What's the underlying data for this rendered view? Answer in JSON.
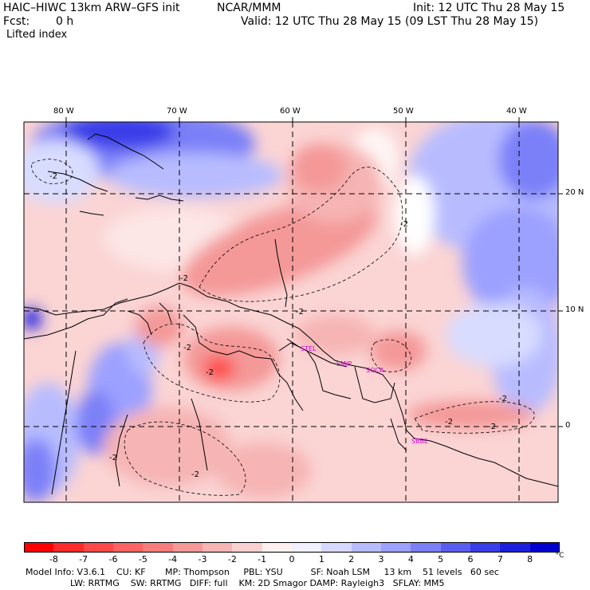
{
  "header": {
    "model": "HAIC–HIWC 13km ARW–GFS init",
    "center": "NCAR/MMM",
    "init": "Init: 12 UTC Thu 28 May 15",
    "fcst_label": "Fcst:",
    "fcst_value": "0 h",
    "valid": "Valid: 12 UTC Thu 28 May 15 (09 LST Thu 28 May 15)",
    "field": "Lifted index"
  },
  "map": {
    "lon_labels": [
      "80 W",
      "70 W",
      "60 W",
      "50 W",
      "40 W"
    ],
    "lat_labels": [
      "20 N",
      "10 N",
      "0"
    ],
    "contour_labels": [
      "-2",
      "-2",
      "-2",
      "-2",
      "-2",
      "-2",
      "-2",
      "-2",
      "-2",
      "-2",
      "-2"
    ],
    "stations": [
      "STEL",
      "SMJP",
      "SOCA",
      "SBBE"
    ],
    "colors": {
      "neg_strong": "#ff2020",
      "neg_mid": "#f28a8a",
      "neg_light": "#fbd4d4",
      "neutral": "#ffffff",
      "pos_light": "#d8dcff",
      "pos_mid": "#8a8ff5",
      "pos_strong": "#2020e0",
      "station": "#d000d0"
    }
  },
  "colorbar": {
    "labels": [
      "-8",
      "-7",
      "-6",
      "-5",
      "-4",
      "-3",
      "-2",
      "-1",
      "0",
      "1",
      "2",
      "3",
      "4",
      "5",
      "6",
      "7",
      "8"
    ],
    "unit": "°C",
    "colors": [
      "#ff0000",
      "#ff2a2a",
      "#ff4848",
      "#ff6363",
      "#f77d7d",
      "#f49898",
      "#f6b4b4",
      "#fbd0d0",
      "#fff0f0",
      "#f0f0ff",
      "#d6d8ff",
      "#b8bcff",
      "#9ca0ff",
      "#7c80f8",
      "#5a5ef0",
      "#3a3ee8",
      "#1c20de",
      "#0000d0"
    ]
  },
  "footer": {
    "line1": "Model Info: V3.6.1    CU: KF       MP: Thompson     PBL: YSU          SF: Noah LSM     13 km    51 levels   60 sec",
    "line2": "                LW: RRTMG    SW: RRTMG   DIFF: full    KM: 2D Smagor DAMP: Rayleigh3   SFLAY: MM5"
  }
}
